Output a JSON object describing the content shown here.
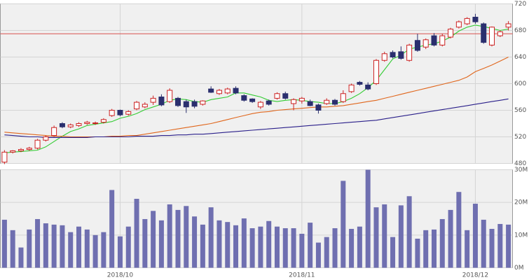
{
  "chart_data": [
    {
      "type": "candlestick",
      "open": [
        482,
        497,
        499,
        501,
        503,
        515,
        522,
        540,
        535,
        537,
        540,
        540,
        542,
        552,
        560,
        554,
        562,
        565,
        572,
        580,
        573,
        578,
        573,
        573,
        569,
        592,
        585,
        586,
        593,
        582,
        577,
        565,
        574,
        578,
        585,
        570,
        574,
        573,
        568,
        570,
        575,
        573,
        588,
        602,
        598,
        600,
        635,
        647,
        648,
        635,
        665,
        655,
        672,
        658,
        670,
        685,
        690,
        700,
        690,
        658,
        672,
        685
      ],
      "high": [
        500,
        500,
        503,
        505,
        517,
        522,
        537,
        542,
        540,
        542,
        544,
        543,
        548,
        562,
        561,
        560,
        574,
        572,
        582,
        584,
        593,
        580,
        576,
        576,
        575,
        596,
        592,
        594,
        596,
        584,
        578,
        574,
        576,
        587,
        588,
        578,
        580,
        576,
        570,
        578,
        577,
        590,
        600,
        604,
        602,
        637,
        648,
        650,
        656,
        660,
        675,
        668,
        676,
        675,
        684,
        695,
        700,
        705,
        692,
        686,
        680,
        694
      ],
      "low": [
        479,
        495,
        497,
        499,
        501,
        513,
        520,
        533,
        533,
        535,
        538,
        538,
        540,
        550,
        551,
        552,
        560,
        563,
        568,
        566,
        571,
        565,
        556,
        563,
        567,
        586,
        583,
        584,
        584,
        573,
        571,
        562,
        567,
        576,
        576,
        560,
        570,
        566,
        555,
        568,
        567,
        571,
        586,
        597,
        590,
        598,
        633,
        638,
        636,
        633,
        648,
        652,
        656,
        656,
        668,
        683,
        688,
        690,
        660,
        656,
        670,
        680
      ],
      "close": [
        497,
        499,
        501,
        503,
        515,
        520,
        534,
        535,
        538,
        540,
        542,
        541,
        546,
        560,
        553,
        558,
        572,
        569,
        578,
        568,
        590,
        567,
        565,
        566,
        574,
        587,
        590,
        592,
        586,
        575,
        573,
        572,
        569,
        585,
        578,
        576,
        578,
        567,
        560,
        575,
        569,
        585,
        598,
        599,
        592,
        635,
        645,
        640,
        638,
        658,
        650,
        666,
        658,
        672,
        682,
        693,
        698,
        693,
        662,
        685,
        678,
        690
      ],
      "up_color": "#cc2222",
      "down_color": "#2a2f6e",
      "series": [
        {
          "color": "#33cc33",
          "values": [
            496,
            497,
            498,
            499,
            500,
            505,
            513,
            521,
            528,
            532,
            537,
            539,
            541,
            543,
            548,
            551,
            555,
            561,
            565,
            569,
            575,
            577,
            576,
            573,
            572,
            576,
            578,
            580,
            586,
            586,
            583,
            580,
            575,
            573,
            575,
            576,
            575,
            573,
            572,
            570,
            570,
            573,
            578,
            585,
            594,
            605,
            621,
            637,
            643,
            652,
            655,
            658,
            660,
            664,
            670,
            679,
            685,
            688,
            686,
            683,
            680,
            682
          ]
        },
        {
          "color": "#e0661c",
          "values": [
            527,
            526,
            525,
            524,
            523,
            522,
            521,
            521,
            520,
            520,
            520,
            520,
            520,
            521,
            521,
            522,
            522,
            524,
            526,
            528,
            530,
            532,
            534,
            536,
            538,
            540,
            543,
            546,
            549,
            552,
            555,
            557,
            558,
            560,
            561,
            562,
            563,
            564,
            565,
            565,
            566,
            567,
            569,
            571,
            573,
            575,
            578,
            581,
            584,
            587,
            590,
            593,
            596,
            599,
            602,
            605,
            610,
            618,
            623,
            628,
            634,
            640
          ]
        },
        {
          "color": "#2a1f8a",
          "values": [
            523,
            522,
            521,
            520,
            520,
            519,
            519,
            519,
            519,
            519,
            519,
            520,
            520,
            520,
            520,
            520,
            521,
            521,
            521,
            522,
            522,
            523,
            523,
            524,
            524,
            525,
            526,
            527,
            528,
            529,
            530,
            531,
            532,
            533,
            534,
            535,
            536,
            537,
            538,
            539,
            540,
            541,
            542,
            543,
            544,
            545,
            547,
            549,
            551,
            553,
            555,
            557,
            559,
            561,
            563,
            565,
            567,
            569,
            571,
            573,
            575,
            577
          ]
        }
      ],
      "hline": 675,
      "hline_color": "#d9534f",
      "ylim": [
        480,
        720
      ],
      "yticks": [
        480,
        520,
        560,
        600,
        640,
        680,
        720
      ],
      "grid": true
    },
    {
      "type": "bar",
      "categories": [
        null,
        null,
        null,
        null,
        null,
        null,
        null,
        null,
        null,
        null,
        null,
        null,
        null,
        null,
        "2018/10",
        null,
        null,
        null,
        null,
        null,
        null,
        null,
        null,
        null,
        null,
        null,
        null,
        null,
        null,
        null,
        null,
        null,
        null,
        null,
        null,
        null,
        "2018/11",
        null,
        null,
        null,
        null,
        null,
        null,
        null,
        null,
        null,
        null,
        null,
        null,
        null,
        null,
        null,
        null,
        null,
        null,
        null,
        null,
        "2018/12",
        null,
        null,
        null,
        null
      ],
      "values": [
        14700000,
        11500000,
        6200000,
        11700000,
        14900000,
        13600000,
        13200000,
        13000000,
        10900000,
        12600000,
        11700000,
        10000000,
        10900000,
        23800000,
        9600000,
        12600000,
        21100000,
        14900000,
        17400000,
        14500000,
        19400000,
        17700000,
        18900000,
        15700000,
        13200000,
        18500000,
        14500000,
        14000000,
        13000000,
        15100000,
        12100000,
        12600000,
        14300000,
        12600000,
        12100000,
        12100000,
        10400000,
        13800000,
        7700000,
        9400000,
        12100000,
        26600000,
        11900000,
        12600000,
        30000000,
        18500000,
        19400000,
        9400000,
        19100000,
        21900000,
        8900000,
        11500000,
        11700000,
        14900000,
        17700000,
        23200000,
        11500000,
        19600000,
        14700000,
        11900000,
        13400000,
        13200000
      ],
      "color": "#6f6fb0",
      "ylim": [
        0,
        30000000
      ],
      "yticks": [
        {
          "value": 0,
          "label": "0M"
        },
        {
          "value": 10000000,
          "label": "10M"
        },
        {
          "value": 20000000,
          "label": "20M"
        },
        {
          "value": 30000000,
          "label": "30M"
        }
      ],
      "grid": true
    }
  ]
}
